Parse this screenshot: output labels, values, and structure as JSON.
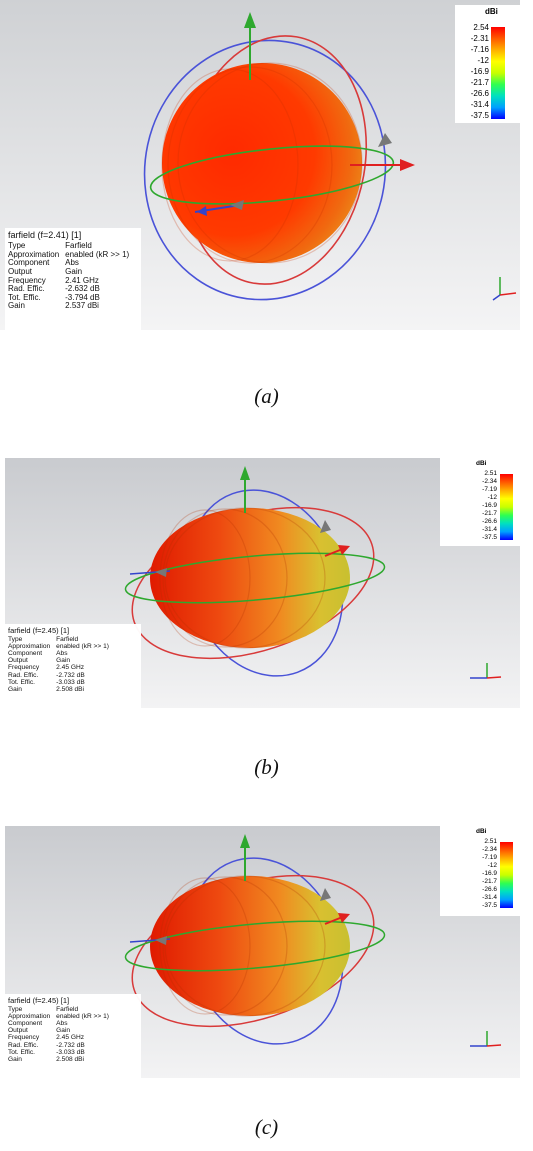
{
  "colormap": [
    "#0000ff",
    "#00a0ff",
    "#00e0c0",
    "#30ff50",
    "#c8ff00",
    "#ffff00",
    "#ffb000",
    "#ff5a00",
    "#ff0000"
  ],
  "panels": [
    {
      "caption": "(a)",
      "pattern_color": "#e8552a",
      "info": {
        "title": "farfield (f=2.41) [1]",
        "rows": [
          {
            "key": "Type",
            "value": "Farfield"
          },
          {
            "key": "Approximation",
            "value": "enabled (kR >> 1)"
          },
          {
            "key": "Component",
            "value": "Abs"
          },
          {
            "key": "Output",
            "value": "Gain"
          },
          {
            "key": "Frequency",
            "value": "2.41 GHz"
          },
          {
            "key": "Rad. Effic.",
            "value": "-2.632 dB"
          },
          {
            "key": "Tot. Effic.",
            "value": "-3.794 dB"
          },
          {
            "key": "Gain",
            "value": "2.537 dBi"
          }
        ]
      },
      "legend": {
        "unit": "dBi",
        "ticks": [
          "2.54",
          "-2.31",
          "-7.16",
          "-12",
          "-16.9",
          "-21.7",
          "-26.6",
          "-31.4",
          "-37.5"
        ]
      }
    },
    {
      "caption": "(b)",
      "pattern_color": "#e6672d",
      "info": {
        "title": "farfield (f=2.45) [1]",
        "rows": [
          {
            "key": "Type",
            "value": "Farfield"
          },
          {
            "key": "Approximation",
            "value": "enabled (kR >> 1)"
          },
          {
            "key": "Component",
            "value": "Abs"
          },
          {
            "key": "Output",
            "value": "Gain"
          },
          {
            "key": "Frequency",
            "value": "2.45 GHz"
          },
          {
            "key": "Rad. Effic.",
            "value": "-2.732 dB"
          },
          {
            "key": "Tot. Effic.",
            "value": "-3.033 dB"
          },
          {
            "key": "Gain",
            "value": "2.508 dBi"
          }
        ]
      },
      "legend": {
        "unit": "dBi",
        "ticks": [
          "2.51",
          "-2.34",
          "-7.19",
          "-12",
          "-16.9",
          "-21.7",
          "-26.6",
          "-31.4",
          "-37.5"
        ]
      }
    },
    {
      "caption": "(c)",
      "pattern_color": "#e6672d",
      "info": {
        "title": "farfield (f=2.45) [1]",
        "rows": [
          {
            "key": "Type",
            "value": "Farfield"
          },
          {
            "key": "Approximation",
            "value": "enabled (kR >> 1)"
          },
          {
            "key": "Component",
            "value": "Abs"
          },
          {
            "key": "Output",
            "value": "Gain"
          },
          {
            "key": "Frequency",
            "value": "2.45 GHz"
          },
          {
            "key": "Rad. Effic.",
            "value": "-2.732 dB"
          },
          {
            "key": "Tot. Effic.",
            "value": "-3.033 dB"
          },
          {
            "key": "Gain",
            "value": "2.508 dBi"
          }
        ]
      },
      "legend": {
        "unit": "dBi",
        "ticks": [
          "2.51",
          "-2.34",
          "-7.19",
          "-12",
          "-16.9",
          "-21.7",
          "-26.6",
          "-31.4",
          "-37.5"
        ]
      }
    }
  ]
}
